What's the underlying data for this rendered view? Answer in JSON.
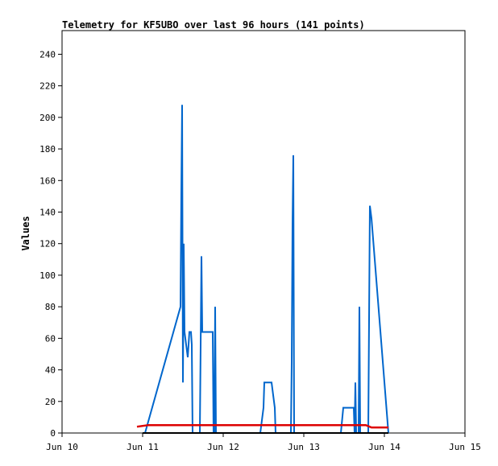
{
  "chart_data": {
    "type": "line",
    "title": "Telemetry for KF5UBO over last 96 hours (141 points)",
    "ylabel": "Values",
    "xlabel": "",
    "x_unit": "days since Jun 10 00:00",
    "xlim": [
      0,
      5
    ],
    "ylim": [
      0,
      255
    ],
    "x_ticks": [
      {
        "value": 0,
        "label": "Jun 10"
      },
      {
        "value": 1,
        "label": "Jun 11"
      },
      {
        "value": 2,
        "label": "Jun 12"
      },
      {
        "value": 3,
        "label": "Jun 13"
      },
      {
        "value": 4,
        "label": "Jun 14"
      },
      {
        "value": 5,
        "label": "Jun 15"
      }
    ],
    "y_ticks": [
      0,
      20,
      40,
      60,
      80,
      100,
      120,
      140,
      160,
      180,
      200,
      220,
      240
    ],
    "grid": false,
    "legend": "none",
    "series": [
      {
        "color": "#0066cc",
        "points": [
          [
            1.03,
            0
          ],
          [
            1.47,
            80
          ],
          [
            1.48,
            152
          ],
          [
            1.49,
            208
          ],
          [
            1.5,
            32
          ],
          [
            1.51,
            120
          ],
          [
            1.52,
            64
          ],
          [
            1.54,
            56
          ],
          [
            1.56,
            48
          ],
          [
            1.58,
            64
          ],
          [
            1.6,
            64
          ],
          [
            1.61,
            56
          ],
          [
            1.62,
            0
          ],
          [
            1.71,
            0
          ],
          [
            1.72,
            56
          ],
          [
            1.73,
            112
          ],
          [
            1.74,
            64
          ],
          [
            1.87,
            64
          ],
          [
            1.88,
            0
          ],
          [
            1.89,
            0
          ],
          [
            1.9,
            80
          ],
          [
            1.91,
            0
          ],
          [
            2.46,
            0
          ],
          [
            2.5,
            16
          ],
          [
            2.51,
            32
          ],
          [
            2.6,
            32
          ],
          [
            2.64,
            16
          ],
          [
            2.65,
            0
          ],
          [
            2.84,
            0
          ],
          [
            2.85,
            45
          ],
          [
            2.86,
            132
          ],
          [
            2.87,
            176
          ],
          [
            2.88,
            0
          ],
          [
            3.46,
            0
          ],
          [
            3.49,
            16
          ],
          [
            3.62,
            16
          ],
          [
            3.63,
            0
          ],
          [
            3.64,
            32
          ],
          [
            3.65,
            0
          ],
          [
            3.68,
            0
          ],
          [
            3.69,
            80
          ],
          [
            3.7,
            0
          ],
          [
            3.8,
            0
          ],
          [
            3.82,
            144
          ],
          [
            3.84,
            136
          ],
          [
            4.05,
            0
          ]
        ]
      },
      {
        "color": "#dd0000",
        "points": [
          [
            0.93,
            4
          ],
          [
            1.0,
            4.5
          ],
          [
            1.07,
            5
          ],
          [
            3.77,
            5
          ],
          [
            3.84,
            3.5
          ],
          [
            4.05,
            3.5
          ]
        ]
      },
      {
        "color": "#000000",
        "points": [
          [
            1.0,
            0
          ],
          [
            4.05,
            0
          ]
        ]
      }
    ]
  }
}
